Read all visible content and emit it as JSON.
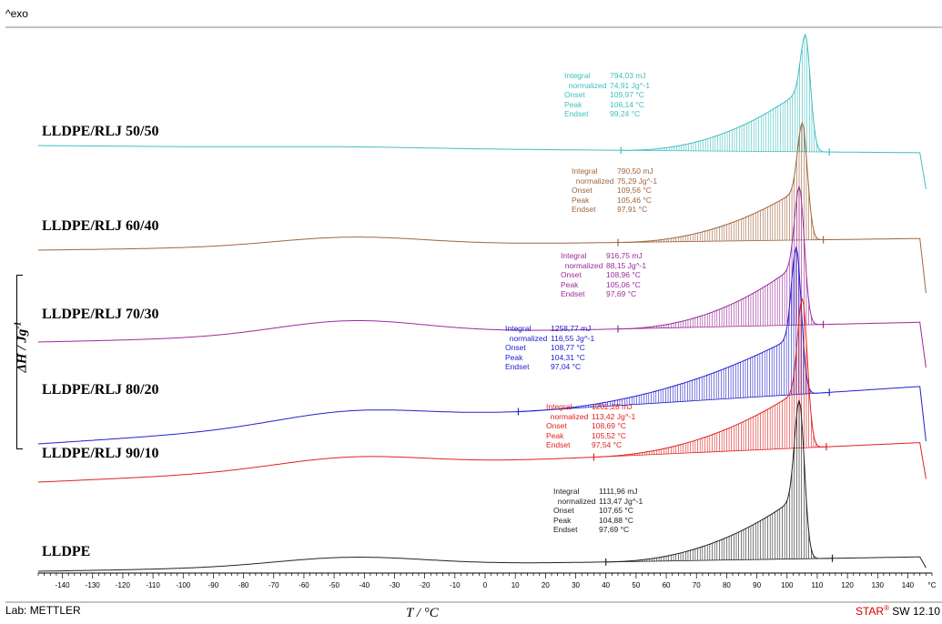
{
  "header": {
    "exo_label": "^exo"
  },
  "footer": {
    "lab": "Lab: METTLER",
    "software_prefix": "STAR",
    "software_suffix": " SW 12.10"
  },
  "chart_data": {
    "type": "line",
    "xlabel": "T / °C",
    "ylabel": "ΔH / Jg",
    "ylabel_sup": "-1",
    "xlim": [
      -148,
      148
    ],
    "x_unit_tick": "°C",
    "x_ticks": [
      -140,
      -130,
      -120,
      -110,
      -100,
      -90,
      -80,
      -70,
      -60,
      -50,
      -40,
      -30,
      -20,
      -10,
      0,
      10,
      20,
      30,
      40,
      50,
      60,
      70,
      80,
      90,
      100,
      110,
      120,
      130,
      140
    ],
    "series": [
      {
        "name": "LLDPE/RLJ 50/50",
        "color": "#3fbfbf",
        "annotation": {
          "Integral": "794,03 mJ",
          "normalized": "74,91 Jg^-1",
          "Onset": "109,97 °C",
          "Peak": "106,14 °C",
          "Endset": "99,24 °C"
        }
      },
      {
        "name": "LLDPE/RLJ 60/40",
        "color": "#a0643c",
        "annotation": {
          "Integral": "790,50 mJ",
          "normalized": "75,29 Jg^-1",
          "Onset": "109,56 °C",
          "Peak": "105,46 °C",
          "Endset": "97,91 °C"
        }
      },
      {
        "name": "LLDPE/RLJ 70/30",
        "color": "#9b2a9b",
        "annotation": {
          "Integral": "916,75 mJ",
          "normalized": "88,15 Jg^-1",
          "Onset": "108,96 °C",
          "Peak": "105,06 °C",
          "Endset": "97,69 °C"
        }
      },
      {
        "name": "LLDPE/RLJ 80/20",
        "color": "#2020d0",
        "annotation": {
          "Integral": "1258,77 mJ",
          "normalized": "116,55 Jg^-1",
          "Onset": "108,77 °C",
          "Peak": "104,31 °C",
          "Endset": "97,04 °C"
        }
      },
      {
        "name": "LLDPE/RLJ 90/10",
        "color": "#e02020",
        "annotation": {
          "Integral": "1202,28 mJ",
          "normalized": "113,42 Jg^-1",
          "Onset": "108,69 °C",
          "Peak": "105,52 °C",
          "Endset": "97,54 °C"
        }
      },
      {
        "name": "LLDPE",
        "color": "#222222",
        "annotation": {
          "Integral": "1111,96 mJ",
          "normalized": "113,47 Jg^-1",
          "Onset": "107,65 °C",
          "Peak": "104,88 °C",
          "Endset": "97,69 °C"
        }
      }
    ]
  }
}
